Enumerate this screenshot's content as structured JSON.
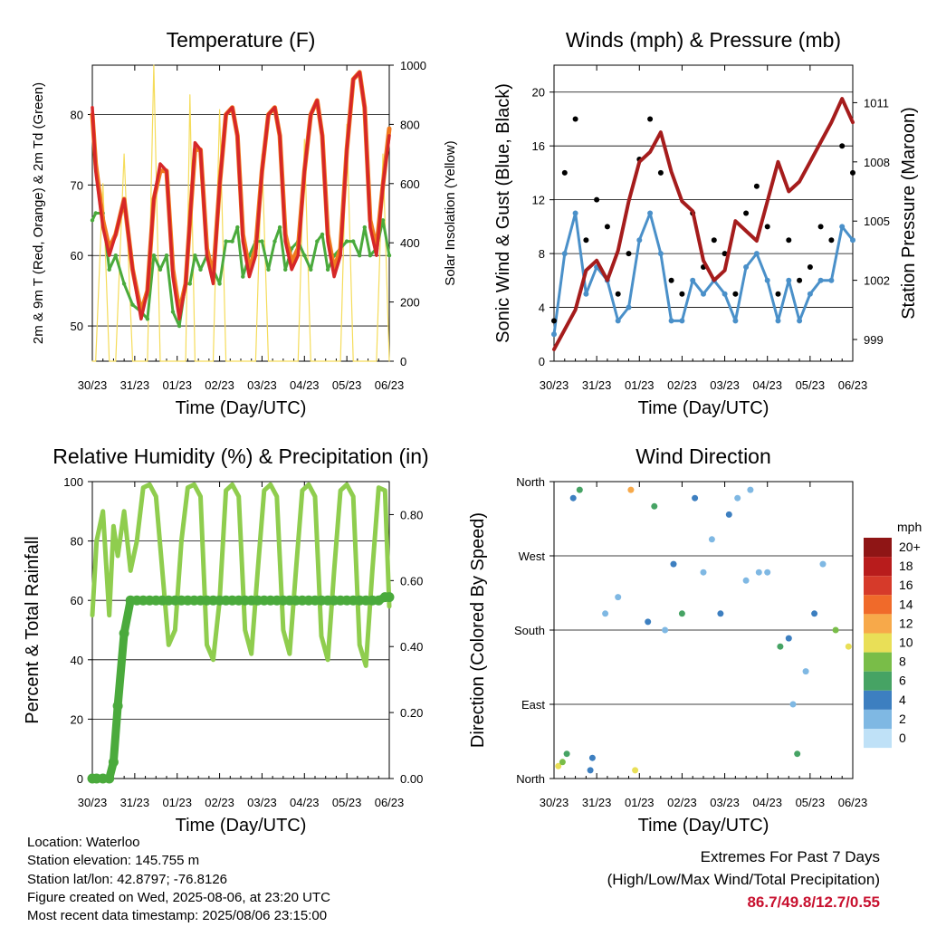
{
  "colors": {
    "temp_2m": "#d62728",
    "temp_9m": "#f07a1e",
    "dewpoint": "#4aaa3c",
    "solar": "#f5dc5a",
    "pressure": "#a51c1c",
    "gust": "#000000",
    "wind": "#4a90c9",
    "rh": "#8fcd4e",
    "precip": "#4aaa3c"
  },
  "time_ticks": [
    "30/23",
    "31/23",
    "01/23",
    "02/23",
    "03/23",
    "04/23",
    "05/23",
    "06/23"
  ],
  "info": {
    "location": "Location: Waterloo",
    "elevation": "Station elevation: 145.755 m",
    "latlon": "Station lat/lon: 42.8797; -76.8126",
    "created": "Figure created on Wed, 2025-08-06, at 23:20 UTC",
    "recent": "Most recent data timestamp: 2025/08/06 23:15:00"
  },
  "extremes": {
    "title": "Extremes For Past 7 Days",
    "subtitle": "(High/Low/Max Wind/Total Precipitation)",
    "values": "86.7/49.8/12.7/0.55"
  },
  "chart_data": [
    {
      "type": "line",
      "title": "Temperature (F)",
      "xlabel": "Time (Day/UTC)",
      "ylabel": "2m & 9m T (Red, Orange) & 2m Td (Green)",
      "y2label": "Solar Insolation (Yellow)",
      "xlim": [
        0,
        7
      ],
      "ylim": [
        45,
        87
      ],
      "y2lim": [
        0,
        1000
      ],
      "yticks": [
        50,
        60,
        70,
        80
      ],
      "y2ticks": [
        0,
        200,
        400,
        600,
        800,
        1000
      ],
      "grid": true,
      "x": [
        0.0,
        0.08,
        0.25,
        0.4,
        0.55,
        0.75,
        0.95,
        1.15,
        1.3,
        1.45,
        1.6,
        1.75,
        1.9,
        2.05,
        2.2,
        2.3,
        2.42,
        2.55,
        2.7,
        2.85,
        3.0,
        3.15,
        3.3,
        3.42,
        3.55,
        3.7,
        3.85,
        4.0,
        4.15,
        4.3,
        4.42,
        4.55,
        4.7,
        4.85,
        5.0,
        5.15,
        5.3,
        5.42,
        5.55,
        5.7,
        5.85,
        6.0,
        6.15,
        6.3,
        6.42,
        6.55,
        6.7,
        6.85,
        7.0
      ],
      "series": [
        {
          "name": "2m T",
          "values": [
            81,
            72,
            64,
            60,
            63,
            68,
            58,
            51,
            55,
            68,
            73,
            72,
            57,
            51,
            56,
            65,
            76,
            75,
            60,
            56,
            70,
            80,
            81,
            77,
            62,
            57,
            60,
            72,
            80,
            81,
            77,
            62,
            58,
            60,
            72,
            80,
            82,
            77,
            62,
            57,
            60,
            75,
            85,
            86,
            81,
            64,
            60,
            70,
            77
          ]
        },
        {
          "name": "9m T",
          "values": [
            80,
            73,
            65,
            61,
            63,
            68,
            58,
            52,
            55,
            68,
            72,
            72,
            58,
            52,
            56,
            65,
            75,
            75,
            61,
            57,
            70,
            80,
            81,
            77,
            63,
            58,
            61,
            72,
            80,
            81,
            77,
            63,
            59,
            61,
            72,
            80,
            82,
            77,
            63,
            58,
            61,
            75,
            85,
            86,
            81,
            65,
            61,
            70,
            78
          ]
        },
        {
          "name": "2m Td",
          "values": [
            65,
            66,
            66,
            58,
            60,
            56,
            53,
            52,
            51,
            60,
            58,
            60,
            52,
            50,
            56,
            56,
            60,
            58,
            60,
            58,
            56,
            62,
            62,
            64,
            57,
            60,
            62,
            62,
            58,
            62,
            64,
            58,
            61,
            62,
            60,
            58,
            62,
            63,
            58,
            60,
            61,
            62,
            62,
            60,
            64,
            60,
            61,
            65,
            60
          ]
        },
        {
          "name": "Solar",
          "axis": "y2",
          "values": [
            0,
            0,
            600,
            0,
            0,
            700,
            0,
            0,
            0,
            1000,
            0,
            0,
            0,
            0,
            0,
            900,
            0,
            0,
            0,
            0,
            850,
            0,
            0,
            0,
            0,
            0,
            0,
            700,
            0,
            0,
            0,
            0,
            0,
            0,
            750,
            0,
            0,
            0,
            0,
            0,
            0,
            800,
            0,
            0,
            0,
            0,
            0,
            700,
            0
          ]
        }
      ]
    },
    {
      "type": "scatter",
      "title": "Winds (mph) & Pressure (mb)",
      "xlabel": "Time (Day/UTC)",
      "ylabel": "Sonic Wind & Gust (Blue, Black)",
      "y2label": "Station Pressure (Maroon)",
      "xlim": [
        0,
        7
      ],
      "ylim": [
        0,
        22
      ],
      "y2lim": [
        997.9,
        1012.9
      ],
      "yticks": [
        0,
        4,
        8,
        12,
        16,
        20
      ],
      "y2ticks": [
        999,
        1002,
        1005,
        1008,
        1011
      ],
      "grid": true,
      "x": [
        0.0,
        0.25,
        0.5,
        0.75,
        1.0,
        1.25,
        1.5,
        1.75,
        2.0,
        2.25,
        2.5,
        2.75,
        3.0,
        3.25,
        3.5,
        3.75,
        4.0,
        4.25,
        4.5,
        4.75,
        5.0,
        5.25,
        5.5,
        5.75,
        6.0,
        6.25,
        6.5,
        6.75,
        7.0
      ],
      "series": [
        {
          "name": "Gust",
          "values": [
            3,
            14,
            18,
            9,
            12,
            10,
            5,
            8,
            15,
            18,
            14,
            6,
            5,
            11,
            7,
            9,
            8,
            5,
            11,
            13,
            10,
            5,
            9,
            6,
            7,
            10,
            9,
            16,
            14
          ]
        },
        {
          "name": "Wind",
          "values": [
            2,
            8,
            11,
            5,
            7,
            6,
            3,
            4,
            9,
            11,
            8,
            3,
            3,
            6,
            5,
            6,
            5,
            3,
            7,
            8,
            6,
            3,
            6,
            3,
            5,
            6,
            6,
            10,
            9
          ]
        },
        {
          "name": "Pressure",
          "axis": "y2",
          "values": [
            998.5,
            999.5,
            1000.5,
            1002.5,
            1003.0,
            1002.0,
            1003.5,
            1006.0,
            1008.0,
            1008.5,
            1009.5,
            1007.5,
            1006.0,
            1005.5,
            1003.0,
            1002.0,
            1002.5,
            1005.0,
            1004.5,
            1004.0,
            1006.0,
            1008.0,
            1006.5,
            1007.0,
            1008.0,
            1009.0,
            1010.0,
            1011.2,
            1010.0
          ]
        }
      ]
    },
    {
      "type": "line",
      "title": "Relative Humidity (%) & Precipitation (in)",
      "xlabel": "Time (Day/UTC)",
      "ylabel": "Percent & Total Rainfall",
      "xlim": [
        0,
        7
      ],
      "ylim": [
        0,
        100
      ],
      "y2lim": [
        0,
        0.9
      ],
      "yticks": [
        0,
        20,
        40,
        60,
        80,
        100
      ],
      "y2ticks": [
        0.0,
        0.2,
        0.4,
        0.6,
        0.8
      ],
      "y2ticklabels": [
        "0.00",
        "0.20",
        "0.40",
        "0.60",
        "0.80"
      ],
      "grid": true,
      "x": [
        0.0,
        0.1,
        0.25,
        0.4,
        0.5,
        0.6,
        0.75,
        0.9,
        1.05,
        1.2,
        1.35,
        1.5,
        1.65,
        1.8,
        1.95,
        2.1,
        2.25,
        2.4,
        2.55,
        2.7,
        2.85,
        3.0,
        3.15,
        3.3,
        3.45,
        3.6,
        3.75,
        3.9,
        4.05,
        4.2,
        4.35,
        4.5,
        4.65,
        4.8,
        4.95,
        5.1,
        5.25,
        5.4,
        5.55,
        5.7,
        5.85,
        6.0,
        6.15,
        6.3,
        6.45,
        6.6,
        6.75,
        6.9,
        7.0
      ],
      "series": [
        {
          "name": "RH",
          "values": [
            55,
            80,
            90,
            55,
            85,
            75,
            90,
            70,
            80,
            98,
            99,
            95,
            70,
            45,
            50,
            80,
            98,
            99,
            95,
            45,
            40,
            60,
            97,
            99,
            95,
            50,
            42,
            70,
            97,
            99,
            95,
            50,
            42,
            70,
            97,
            99,
            95,
            48,
            40,
            70,
            97,
            99,
            95,
            45,
            38,
            70,
            98,
            97,
            58
          ]
        },
        {
          "name": "Precip",
          "axis": "y2",
          "values": [
            0.0,
            0.0,
            0.0,
            0.0,
            0.05,
            0.22,
            0.44,
            0.54,
            0.54,
            0.54,
            0.54,
            0.54,
            0.54,
            0.54,
            0.54,
            0.54,
            0.54,
            0.54,
            0.54,
            0.54,
            0.54,
            0.54,
            0.54,
            0.54,
            0.54,
            0.54,
            0.54,
            0.54,
            0.54,
            0.54,
            0.54,
            0.54,
            0.54,
            0.54,
            0.54,
            0.54,
            0.54,
            0.54,
            0.54,
            0.54,
            0.54,
            0.54,
            0.54,
            0.54,
            0.54,
            0.54,
            0.54,
            0.55,
            0.55
          ]
        }
      ]
    },
    {
      "type": "scatter",
      "title": "Wind Direction",
      "xlabel": "Time (Day/UTC)",
      "ylabel": "Direction (Colored By Speed)",
      "xlim": [
        0,
        7
      ],
      "ylim": [
        0,
        360
      ],
      "yticks": [
        0,
        90,
        180,
        270,
        360
      ],
      "yticklabels": [
        "North",
        "East",
        "South",
        "West",
        "North"
      ],
      "grid": true,
      "colorbar": {
        "title": "mph",
        "labels": [
          "20+",
          "18",
          "16",
          "14",
          "12",
          "10",
          "8",
          "6",
          "4",
          "2",
          "0"
        ],
        "colors": [
          "#8f1515",
          "#b81c1c",
          "#d63a2a",
          "#f06a2a",
          "#f7a94a",
          "#e9df57",
          "#79bd48",
          "#46a364",
          "#3d7fc0",
          "#7fb8e3",
          "#bfe1f7"
        ]
      },
      "x": [
        0.1,
        0.2,
        0.3,
        0.45,
        0.6,
        0.85,
        0.9,
        1.2,
        1.5,
        1.8,
        1.9,
        2.2,
        2.35,
        2.6,
        2.8,
        3.0,
        3.3,
        3.5,
        3.7,
        3.9,
        4.1,
        4.3,
        4.5,
        4.6,
        4.8,
        5.0,
        5.3,
        5.5,
        5.6,
        5.7,
        5.9,
        6.1,
        6.3,
        6.6,
        6.9
      ],
      "series": [
        {
          "name": "Direction",
          "values": [
            15,
            20,
            30,
            340,
            350,
            10,
            25,
            200,
            220,
            350,
            10,
            190,
            330,
            180,
            260,
            200,
            340,
            250,
            290,
            200,
            320,
            340,
            240,
            350,
            250,
            250,
            160,
            170,
            90,
            30,
            130,
            200,
            260,
            180,
            160
          ]
        },
        {
          "name": "Speed",
          "values": [
            10,
            8,
            6,
            4,
            6,
            5,
            4,
            3,
            2,
            12,
            11,
            4,
            6,
            3,
            5,
            6,
            4,
            2,
            3,
            5,
            4,
            3,
            2,
            3,
            2,
            3,
            6,
            4,
            3,
            6,
            2,
            4,
            2,
            8,
            10
          ]
        }
      ]
    }
  ]
}
